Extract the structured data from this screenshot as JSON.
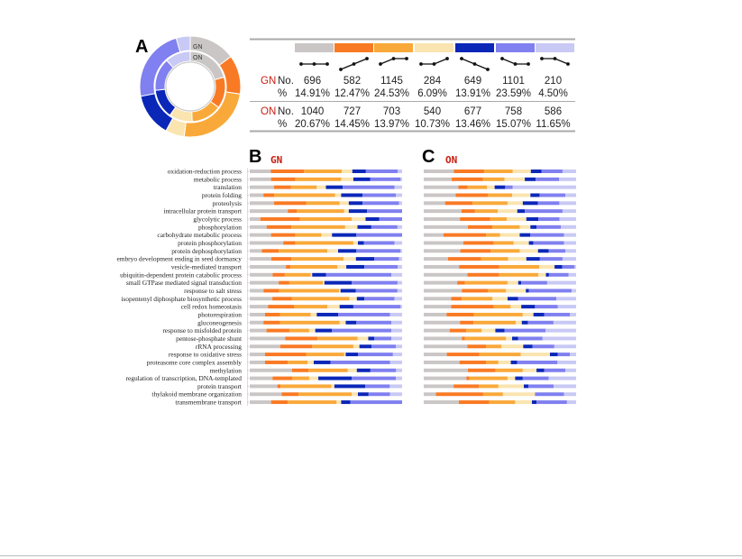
{
  "figure": {
    "panel_a_label": "A",
    "panel_b_label": "B",
    "panel_c_label": "C",
    "ring_outer_label": "GN",
    "ring_inner_label": "ON"
  },
  "colors": [
    "#cbc6c6",
    "#f97a24",
    "#f9a93a",
    "#fae4b0",
    "#0a27b8",
    "#8080f0",
    "#c9c9f5"
  ],
  "table": {
    "gn_label": "GN",
    "on_label": "ON",
    "no_label": "No.",
    "pct_label": "%",
    "trends": [
      [
        1,
        1,
        1
      ],
      [
        0,
        1,
        2
      ],
      [
        1,
        2,
        2
      ],
      [
        1,
        1,
        2
      ],
      [
        2,
        1,
        0
      ],
      [
        2,
        1,
        1
      ],
      [
        2,
        2,
        1
      ]
    ],
    "gn_no": [
      "696",
      "582",
      "1145",
      "284",
      "649",
      "1101",
      "210"
    ],
    "gn_pct": [
      "14.91%",
      "12.47%",
      "24.53%",
      "6.09%",
      "13.91%",
      "23.59%",
      "4.50%"
    ],
    "on_no": [
      "1040",
      "727",
      "703",
      "540",
      "677",
      "758",
      "586"
    ],
    "on_pct": [
      "20.67%",
      "14.45%",
      "13.97%",
      "10.73%",
      "13.46%",
      "15.07%",
      "11.65%"
    ]
  },
  "chart_data": [
    {
      "type": "pie",
      "title": "",
      "series": [
        {
          "name": "GN",
          "values": [
            14.91,
            12.47,
            24.53,
            6.09,
            13.91,
            23.59,
            4.5
          ]
        },
        {
          "name": "ON",
          "values": [
            20.67,
            14.45,
            13.97,
            10.73,
            13.46,
            15.07,
            11.65
          ]
        }
      ]
    },
    {
      "type": "bar",
      "stacked": true,
      "title": "GN",
      "xlabel": "",
      "ylabel": "",
      "categories": [
        "oxidation-reduction process",
        "metabolic process",
        "translation",
        "protein folding",
        "proteolysis",
        "intracellular protein transport",
        "glycolytic process",
        "phosphorylation",
        "carbohydrate metabolic process",
        "protein phosphorylation",
        "protein dephosphorylation",
        "embryo development ending in seed dormancy",
        "vesicle-mediated transport",
        "ubiquitin-dependent protein catabolic process",
        "small GTPase mediated signal transduction",
        "response to salt stress",
        "isopentenyl diphosphate biosynthetic process",
        "cell redox homeostasis",
        "photorespiration",
        "gluconeogenesis",
        "response to misfolded protein",
        "pentose-phosphate shunt",
        "rRNA processing",
        "response to oxidative stress",
        "proteasome core complex assembly",
        "methylation",
        "regulation of transcription, DNA-templated",
        "protein transport",
        "thylakoid membrane organization",
        "transmembrane transport"
      ],
      "values": [
        [
          14,
          22,
          25,
          7,
          9,
          21,
          3
        ],
        [
          14,
          16,
          30,
          8,
          11,
          20,
          1
        ],
        [
          16,
          11,
          17,
          6,
          11,
          34,
          5
        ],
        [
          9,
          7,
          40,
          4,
          14,
          22,
          4
        ],
        [
          16,
          21,
          22,
          6,
          9,
          24,
          2
        ],
        [
          25,
          6,
          31,
          3,
          12,
          23,
          0
        ],
        [
          7,
          26,
          34,
          9,
          9,
          15,
          0
        ],
        [
          11,
          16,
          35,
          8,
          9,
          17,
          3
        ],
        [
          14,
          16,
          17,
          7,
          16,
          30,
          0
        ],
        [
          22,
          8,
          38,
          3,
          4,
          20,
          5
        ],
        [
          8,
          11,
          32,
          7,
          12,
          29,
          1
        ],
        [
          14,
          13,
          34,
          8,
          12,
          16,
          2
        ],
        [
          24,
          3,
          31,
          6,
          12,
          22,
          3
        ],
        [
          15,
          8,
          17,
          1,
          9,
          43,
          7
        ],
        [
          19,
          7,
          22,
          1,
          18,
          30,
          3
        ],
        [
          9,
          10,
          39,
          1,
          10,
          27,
          3
        ],
        [
          15,
          13,
          38,
          5,
          5,
          20,
          5
        ],
        [
          12,
          17,
          22,
          8,
          9,
          31,
          1
        ],
        [
          10,
          10,
          20,
          4,
          14,
          34,
          8
        ],
        [
          9,
          11,
          39,
          4,
          7,
          23,
          7
        ],
        [
          11,
          15,
          13,
          4,
          11,
          39,
          7
        ],
        [
          23,
          21,
          26,
          7,
          4,
          11,
          7
        ],
        [
          20,
          21,
          27,
          4,
          8,
          16,
          4
        ],
        [
          10,
          27,
          25,
          1,
          8,
          23,
          6
        ],
        [
          10,
          15,
          13,
          4,
          11,
          39,
          8
        ],
        [
          28,
          11,
          26,
          6,
          9,
          17,
          4
        ],
        [
          15,
          13,
          11,
          6,
          22,
          29,
          4
        ],
        [
          18,
          2,
          33,
          2,
          20,
          16,
          8
        ],
        [
          21,
          11,
          35,
          4,
          7,
          14,
          8
        ],
        [
          14,
          11,
          32,
          3,
          6,
          34,
          0
        ]
      ],
      "unit": "% of genes per expression cluster"
    },
    {
      "type": "bar",
      "stacked": true,
      "title": "ON",
      "xlabel": "",
      "ylabel": "",
      "values": [
        [
          20,
          20,
          19,
          12,
          7,
          14,
          9
        ],
        [
          18,
          20,
          14,
          13,
          7,
          15,
          11
        ],
        [
          23,
          6,
          13,
          5,
          7,
          5,
          42
        ],
        [
          21,
          21,
          16,
          12,
          6,
          17,
          7
        ],
        [
          14,
          18,
          23,
          10,
          10,
          14,
          11
        ],
        [
          25,
          9,
          15,
          13,
          5,
          25,
          9
        ],
        [
          24,
          20,
          11,
          13,
          8,
          14,
          11
        ],
        [
          29,
          16,
          18,
          7,
          4,
          16,
          10
        ],
        [
          13,
          28,
          9,
          13,
          7,
          22,
          8
        ],
        [
          26,
          20,
          13,
          10,
          3,
          20,
          8
        ],
        [
          24,
          20,
          19,
          12,
          7,
          11,
          7
        ],
        [
          16,
          22,
          18,
          12,
          9,
          15,
          9
        ],
        [
          23,
          26,
          26,
          10,
          5,
          8,
          1
        ],
        [
          29,
          21,
          26,
          5,
          2,
          13,
          5
        ],
        [
          22,
          5,
          28,
          7,
          2,
          17,
          19
        ],
        [
          25,
          17,
          12,
          13,
          2,
          28,
          3
        ],
        [
          18,
          7,
          20,
          10,
          7,
          25,
          13
        ],
        [
          18,
          28,
          11,
          7,
          9,
          15,
          12
        ],
        [
          15,
          18,
          32,
          7,
          7,
          17,
          4
        ],
        [
          24,
          9,
          28,
          4,
          4,
          17,
          15
        ],
        [
          17,
          11,
          10,
          9,
          6,
          27,
          20
        ],
        [
          25,
          2,
          27,
          4,
          4,
          16,
          22
        ],
        [
          28,
          12,
          10,
          14,
          6,
          14,
          14
        ],
        [
          15,
          21,
          27,
          19,
          5,
          8,
          4
        ],
        [
          23,
          17,
          8,
          8,
          4,
          26,
          12
        ],
        [
          29,
          18,
          18,
          9,
          5,
          14,
          7
        ],
        [
          28,
          2,
          25,
          5,
          5,
          17,
          18
        ],
        [
          20,
          17,
          13,
          17,
          3,
          17,
          15
        ],
        [
          8,
          31,
          13,
          21,
          0,
          19,
          8
        ],
        [
          23,
          20,
          17,
          11,
          3,
          20,
          6
        ]
      ],
      "unit": "% of genes per expression cluster"
    }
  ]
}
